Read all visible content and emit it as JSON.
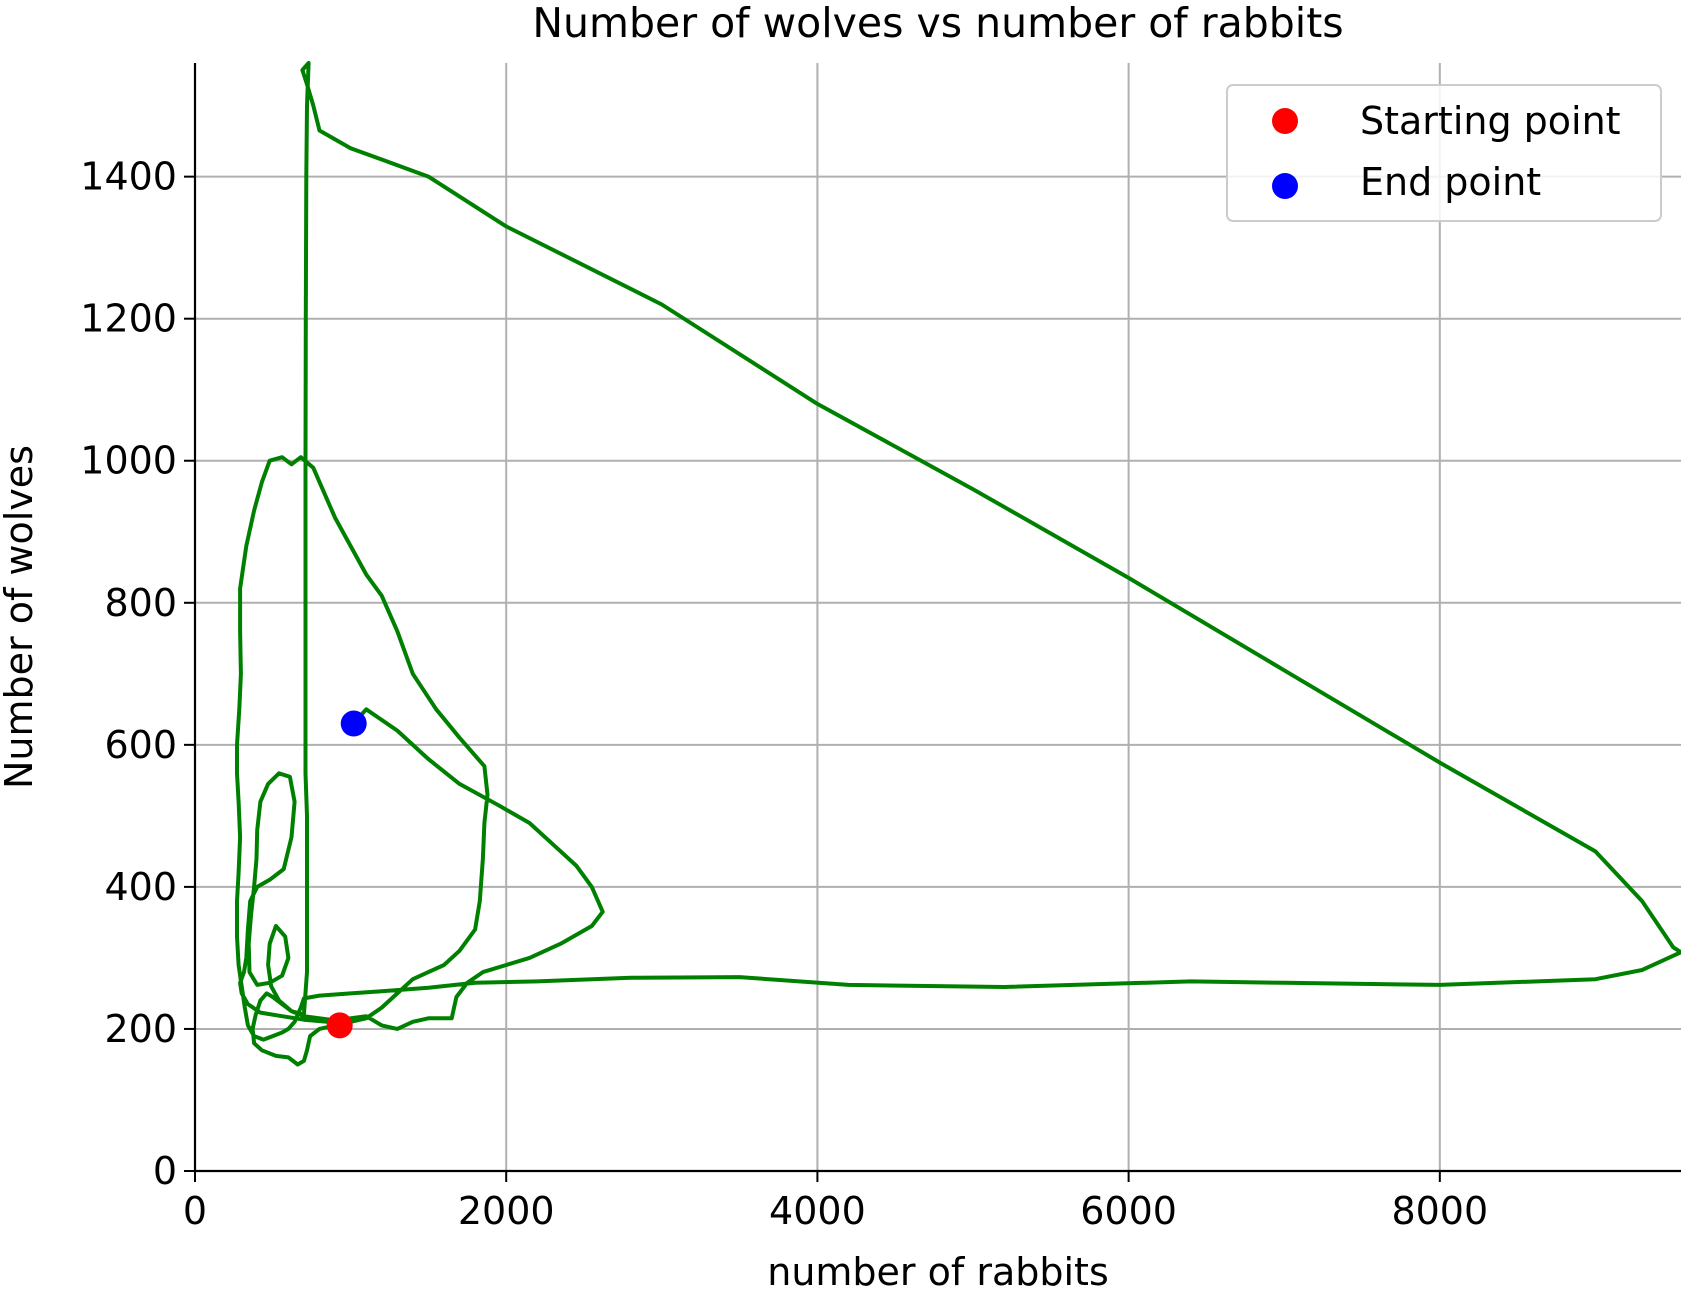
{
  "chart_data": {
    "type": "line",
    "title": "Number of wolves vs number of rabbits",
    "xlabel": "number of rabbits",
    "ylabel": "Number of wolves",
    "xlim": [
      0,
      9550
    ],
    "ylim": [
      0,
      1560
    ],
    "xticks": [
      0,
      2000,
      4000,
      6000,
      8000
    ],
    "yticks": [
      0,
      200,
      400,
      600,
      800,
      1000,
      1200,
      1400
    ],
    "grid": true,
    "legend_position": "top-right",
    "trajectory": {
      "color": "#008000",
      "points": [
        [
          930,
          205
        ],
        [
          850,
          210
        ],
        [
          700,
          213
        ],
        [
          560,
          218
        ],
        [
          420,
          223
        ],
        [
          340,
          235
        ],
        [
          300,
          250
        ],
        [
          290,
          265
        ],
        [
          315,
          280
        ],
        [
          330,
          300
        ],
        [
          340,
          340
        ],
        [
          355,
          380
        ],
        [
          400,
          400
        ],
        [
          480,
          410
        ],
        [
          570,
          425
        ],
        [
          620,
          470
        ],
        [
          640,
          520
        ],
        [
          610,
          555
        ],
        [
          540,
          560
        ],
        [
          470,
          545
        ],
        [
          420,
          520
        ],
        [
          400,
          480
        ],
        [
          395,
          440
        ],
        [
          380,
          400
        ],
        [
          360,
          360
        ],
        [
          345,
          320
        ],
        [
          350,
          280
        ],
        [
          400,
          262
        ],
        [
          480,
          265
        ],
        [
          560,
          275
        ],
        [
          600,
          300
        ],
        [
          580,
          330
        ],
        [
          520,
          345
        ],
        [
          480,
          320
        ],
        [
          470,
          290
        ],
        [
          490,
          260
        ],
        [
          540,
          240
        ],
        [
          620,
          225
        ],
        [
          700,
          220
        ],
        [
          720,
          280
        ],
        [
          720,
          400
        ],
        [
          720,
          500
        ],
        [
          710,
          560
        ],
        [
          710,
          700
        ],
        [
          710,
          850
        ],
        [
          710,
          1000
        ],
        [
          712,
          1200
        ],
        [
          715,
          1400
        ],
        [
          720,
          1500
        ],
        [
          730,
          1560
        ],
        [
          690,
          1550
        ],
        [
          720,
          1530
        ],
        [
          760,
          1500
        ],
        [
          800,
          1465
        ],
        [
          1000,
          1440
        ],
        [
          1500,
          1400
        ],
        [
          2000,
          1330
        ],
        [
          3000,
          1220
        ],
        [
          4000,
          1080
        ],
        [
          5000,
          960
        ],
        [
          6000,
          835
        ],
        [
          7000,
          705
        ],
        [
          8000,
          575
        ],
        [
          9000,
          450
        ],
        [
          9300,
          380
        ],
        [
          9500,
          315
        ],
        [
          9550,
          308
        ],
        [
          9300,
          283
        ],
        [
          9000,
          270
        ],
        [
          8000,
          262
        ],
        [
          7000,
          265
        ],
        [
          6400,
          267
        ],
        [
          5200,
          259
        ],
        [
          4200,
          262
        ],
        [
          3500,
          273
        ],
        [
          2800,
          272
        ],
        [
          2200,
          267
        ],
        [
          1800,
          265
        ],
        [
          1500,
          258
        ],
        [
          1200,
          253
        ],
        [
          1000,
          250
        ],
        [
          800,
          247
        ],
        [
          700,
          243
        ],
        [
          680,
          230
        ],
        [
          640,
          210
        ],
        [
          600,
          200
        ],
        [
          560,
          195
        ],
        [
          500,
          190
        ],
        [
          440,
          185
        ],
        [
          380,
          190
        ],
        [
          340,
          205
        ],
        [
          320,
          230
        ],
        [
          300,
          260
        ],
        [
          280,
          290
        ],
        [
          270,
          330
        ],
        [
          270,
          380
        ],
        [
          280,
          420
        ],
        [
          290,
          470
        ],
        [
          280,
          520
        ],
        [
          270,
          560
        ],
        [
          270,
          600
        ],
        [
          285,
          650
        ],
        [
          295,
          700
        ],
        [
          290,
          760
        ],
        [
          290,
          820
        ],
        [
          330,
          880
        ],
        [
          380,
          930
        ],
        [
          430,
          970
        ],
        [
          480,
          1000
        ],
        [
          560,
          1005
        ],
        [
          620,
          995
        ],
        [
          680,
          1005
        ],
        [
          760,
          990
        ],
        [
          820,
          960
        ],
        [
          900,
          920
        ],
        [
          1000,
          880
        ],
        [
          1100,
          840
        ],
        [
          1200,
          810
        ],
        [
          1300,
          760
        ],
        [
          1400,
          700
        ],
        [
          1550,
          650
        ],
        [
          1700,
          610
        ],
        [
          1860,
          570
        ],
        [
          1880,
          530
        ],
        [
          1860,
          490
        ],
        [
          1850,
          440
        ],
        [
          1830,
          380
        ],
        [
          1800,
          340
        ],
        [
          1700,
          310
        ],
        [
          1600,
          290
        ],
        [
          1500,
          280
        ],
        [
          1400,
          270
        ],
        [
          1300,
          250
        ],
        [
          1200,
          230
        ],
        [
          1100,
          215
        ],
        [
          900,
          205
        ],
        [
          800,
          200
        ],
        [
          740,
          190
        ],
        [
          720,
          170
        ],
        [
          700,
          155
        ],
        [
          660,
          150
        ],
        [
          600,
          160
        ],
        [
          520,
          162
        ],
        [
          430,
          170
        ],
        [
          380,
          180
        ],
        [
          370,
          200
        ],
        [
          390,
          220
        ],
        [
          420,
          240
        ],
        [
          460,
          250
        ],
        [
          500,
          245
        ],
        [
          560,
          235
        ],
        [
          620,
          225
        ],
        [
          700,
          218
        ],
        [
          900,
          212
        ],
        [
          1100,
          218
        ],
        [
          1200,
          205
        ],
        [
          1300,
          200
        ],
        [
          1400,
          210
        ],
        [
          1500,
          215
        ],
        [
          1650,
          215
        ],
        [
          1680,
          245
        ],
        [
          1750,
          265
        ],
        [
          1850,
          280
        ],
        [
          2000,
          290
        ],
        [
          2150,
          300
        ],
        [
          2350,
          320
        ],
        [
          2550,
          345
        ],
        [
          2620,
          365
        ],
        [
          2550,
          400
        ],
        [
          2450,
          430
        ],
        [
          2300,
          460
        ],
        [
          2150,
          490
        ],
        [
          1950,
          515
        ],
        [
          1700,
          545
        ],
        [
          1500,
          580
        ],
        [
          1300,
          620
        ],
        [
          1100,
          650
        ],
        [
          1020,
          630
        ]
      ]
    },
    "markers": [
      {
        "name": "Starting point",
        "x": 930,
        "y": 205,
        "color": "#ff0000"
      },
      {
        "name": "End point",
        "x": 1020,
        "y": 630,
        "color": "#0000ff"
      }
    ]
  }
}
